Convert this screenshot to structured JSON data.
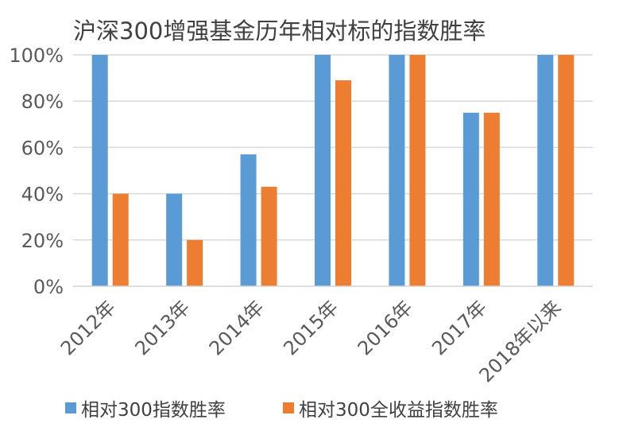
{
  "chart_data": {
    "type": "bar",
    "title": "沪深300增强基金历年相对标的指数胜率",
    "categories": [
      "2012年",
      "2013年",
      "2014年",
      "2015年",
      "2016年",
      "2017年",
      "2018年以来"
    ],
    "series": [
      {
        "name": "相对300指数胜率",
        "color": "#5B9BD5",
        "values": [
          100,
          40,
          57,
          100,
          100,
          75,
          100
        ]
      },
      {
        "name": "相对300全收益指数胜率",
        "color": "#ED7D31",
        "values": [
          40,
          20,
          43,
          89,
          100,
          75,
          100
        ]
      }
    ],
    "ylim": [
      0,
      100
    ],
    "yticks": [
      "0%",
      "20%",
      "40%",
      "60%",
      "80%",
      "100%"
    ],
    "grid": true,
    "legend_position": "bottom"
  }
}
